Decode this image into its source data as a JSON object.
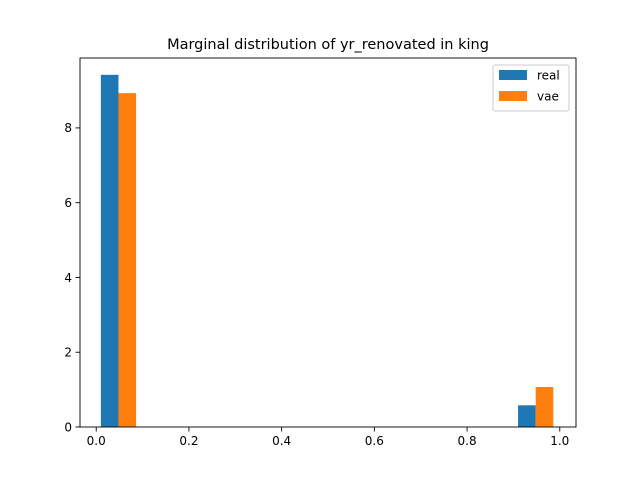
{
  "chart_data": {
    "type": "bar",
    "title": "Marginal distribution of yr_renovated in king",
    "xlabel": "",
    "ylabel": "",
    "xlim": [
      -0.035,
      1.035
    ],
    "ylim": [
      0,
      9.87
    ],
    "x_ticks": [
      0.0,
      0.2,
      0.4,
      0.6,
      0.8,
      1.0
    ],
    "x_tick_labels": [
      "0.0",
      "0.2",
      "0.4",
      "0.6",
      "0.8",
      "1.0"
    ],
    "y_ticks": [
      0,
      2,
      4,
      6,
      8
    ],
    "y_tick_labels": [
      "0",
      "2",
      "4",
      "6",
      "8"
    ],
    "grid": false,
    "legend_position": "top-right",
    "series": [
      {
        "name": "real",
        "color": "#1f77b4",
        "bars": [
          {
            "x0": 0.01,
            "x1": 0.048,
            "value": 9.42
          },
          {
            "x0": 0.91,
            "x1": 0.948,
            "value": 0.58
          }
        ]
      },
      {
        "name": "vae",
        "color": "#ff7f0e",
        "bars": [
          {
            "x0": 0.048,
            "x1": 0.086,
            "value": 8.93
          },
          {
            "x0": 0.948,
            "x1": 0.986,
            "value": 1.07
          }
        ]
      }
    ]
  }
}
